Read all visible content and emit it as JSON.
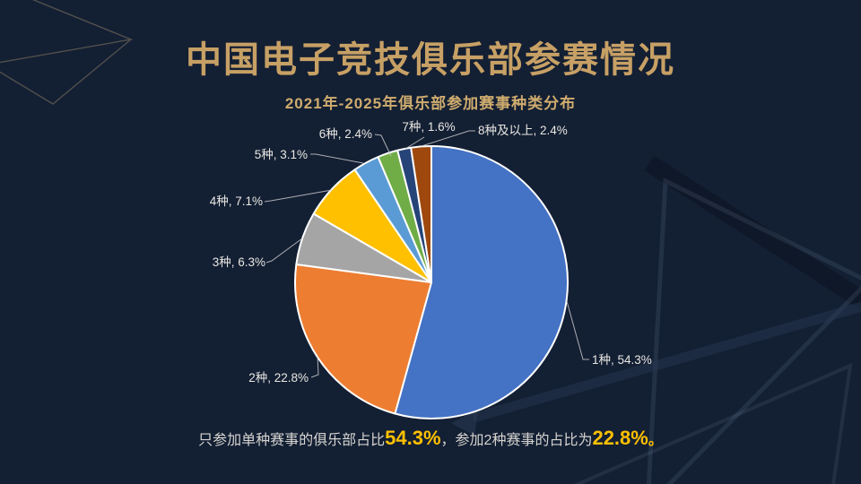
{
  "slide": {
    "title": "中国电子竞技俱乐部参赛情况",
    "note": {
      "segments": [
        {
          "text": "只参加单种赛事的俱乐部占比",
          "style": "normal"
        },
        {
          "text": "54.3%",
          "style": "em"
        },
        {
          "text": "，参加2种赛事的占比为",
          "style": "normal"
        },
        {
          "text": "22.8%",
          "style": "em"
        },
        {
          "text": "。",
          "style": "em-period"
        }
      ]
    }
  },
  "chart_data": {
    "type": "pie",
    "title": "2021年-2025年俱乐部参加赛事种类分布",
    "unit": "%",
    "categories": [
      "1种",
      "2种",
      "3种",
      "4种",
      "5种",
      "6种",
      "7种",
      "8种及以上"
    ],
    "values": [
      54.3,
      22.8,
      6.3,
      7.1,
      3.1,
      2.4,
      1.6,
      2.4
    ],
    "labels": [
      "1种, 54.3%",
      "2种, 22.8%",
      "3种, 6.3%",
      "4种, 7.1%",
      "5种, 3.1%",
      "6种, 2.4%",
      "7种, 1.6%",
      "8种及以上, 2.4%"
    ],
    "colors": [
      "#4472C4",
      "#ED7D31",
      "#A5A5A5",
      "#FFC000",
      "#5B9BD5",
      "#70AD47",
      "#264478",
      "#9E480E"
    ],
    "start_angle_deg": 0,
    "direction": "clockwise",
    "legend": "none",
    "label_style": "outside-with-leader-lines"
  },
  "colors": {
    "background": "#131f33",
    "title": "#c7a065",
    "chart_title": "#cfac6e",
    "label_text": "#e9e7e3",
    "leader_line": "#c8c8c8",
    "slice_border": "#ffffff",
    "note_text": "#d6d4d0",
    "note_highlight": "#ffc000"
  }
}
